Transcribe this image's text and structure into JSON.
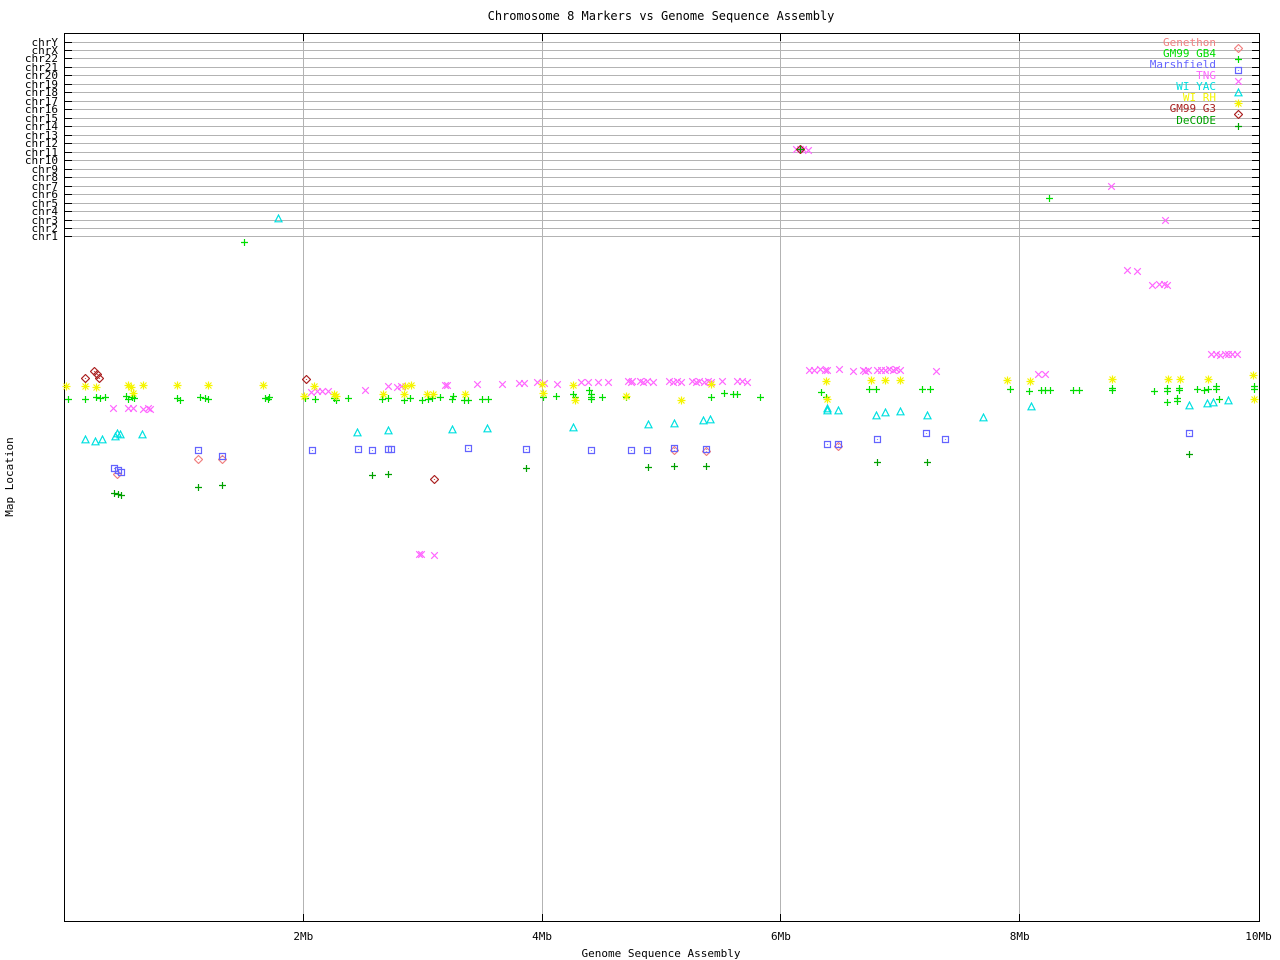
{
  "title": "Chromosome 8 Markers vs Genome Sequence Assembly",
  "x_axis": {
    "label": "Genome Sequence Assembly",
    "tick_labels": [
      "2Mb",
      "4Mb",
      "6Mb",
      "8Mb",
      "10Mb"
    ],
    "tick_values_mb": [
      2,
      4,
      6,
      8,
      10
    ],
    "range_mb": [
      0,
      10
    ],
    "grid": true
  },
  "y_axis": {
    "label": "Map Location",
    "chromosome_rows_top_to_bottom": [
      "chrY",
      "chrX",
      "chr22",
      "chr21",
      "chr20",
      "chr19",
      "chr18",
      "chr17",
      "chr16",
      "chr15",
      "chr14",
      "chr13",
      "chr12",
      "chr11",
      "chr10",
      "chr9",
      "chr8",
      "chr7",
      "chr6",
      "chr5",
      "chr4",
      "chr3",
      "chr2",
      "chr1"
    ]
  },
  "legend": {
    "position": "top-right-inside",
    "items": [
      "Genethon",
      "GM99 GB4",
      "Marshfield",
      "TNG",
      "WI YAC",
      "WI RH",
      "GM99 G3",
      "DeCODE"
    ]
  },
  "chart_data": {
    "type": "scatter",
    "title": "Chromosome 8 Markers vs Genome Sequence Assembly",
    "xlabel": "Genome Sequence Assembly",
    "ylabel": "Map Location",
    "x_unit": "Mb",
    "xlim": [
      0,
      10
    ],
    "y_unit": "screen-px-from-top (y axis has no printed numeric scale; chromosome lines occupy px 42-237)",
    "grid": true,
    "legend_position": "top-right",
    "series": [
      {
        "name": "Genethon",
        "color": "#f08080",
        "marker": "diamond-dot",
        "points": [
          [
            0.44,
            468
          ],
          [
            1.12,
            453
          ],
          [
            1.32,
            453
          ],
          [
            5.11,
            444
          ],
          [
            5.38,
            445
          ],
          [
            6.48,
            440
          ]
        ]
      },
      {
        "name": "GM99 GB4",
        "color": "#00dd00",
        "marker": "plus",
        "points": [
          [
            0.03,
            393
          ],
          [
            0.18,
            393
          ],
          [
            0.27,
            391
          ],
          [
            0.3,
            392
          ],
          [
            0.34,
            391
          ],
          [
            0.52,
            390
          ],
          [
            0.54,
            393
          ],
          [
            0.57,
            391
          ],
          [
            0.59,
            392
          ],
          [
            0.95,
            392
          ],
          [
            0.97,
            394
          ],
          [
            1.14,
            391
          ],
          [
            1.18,
            392
          ],
          [
            1.21,
            393
          ],
          [
            1.68,
            392
          ],
          [
            1.71,
            393
          ],
          [
            1.72,
            391
          ],
          [
            2.02,
            392
          ],
          [
            2.1,
            393
          ],
          [
            2.26,
            392
          ],
          [
            2.28,
            394
          ],
          [
            2.38,
            392
          ],
          [
            2.66,
            393
          ],
          [
            2.71,
            392
          ],
          [
            2.85,
            394
          ],
          [
            2.9,
            392
          ],
          [
            3.0,
            394
          ],
          [
            3.05,
            393
          ],
          [
            3.08,
            392
          ],
          [
            3.15,
            391
          ],
          [
            3.25,
            393
          ],
          [
            3.26,
            390
          ],
          [
            3.35,
            394
          ],
          [
            3.38,
            394
          ],
          [
            3.5,
            393
          ],
          [
            3.55,
            393
          ],
          [
            4.01,
            391
          ],
          [
            4.12,
            390
          ],
          [
            4.26,
            388
          ],
          [
            4.28,
            391
          ],
          [
            4.4,
            384
          ],
          [
            4.41,
            388
          ],
          [
            4.41,
            391
          ],
          [
            4.41,
            393
          ],
          [
            4.51,
            391
          ],
          [
            4.71,
            391
          ],
          [
            5.42,
            391
          ],
          [
            5.53,
            387
          ],
          [
            5.6,
            388
          ],
          [
            5.64,
            388
          ],
          [
            5.83,
            391
          ],
          [
            6.34,
            386
          ],
          [
            6.38,
            391
          ],
          [
            6.74,
            383
          ],
          [
            6.8,
            383
          ],
          [
            7.19,
            383
          ],
          [
            7.25,
            383
          ],
          [
            7.92,
            383
          ],
          [
            8.08,
            385
          ],
          [
            8.18,
            384
          ],
          [
            8.22,
            384
          ],
          [
            8.26,
            384
          ],
          [
            8.45,
            384
          ],
          [
            8.5,
            384
          ],
          [
            8.78,
            382
          ],
          [
            8.78,
            384
          ],
          [
            9.13,
            385
          ],
          [
            9.24,
            382
          ],
          [
            9.24,
            385
          ],
          [
            9.34,
            382
          ],
          [
            9.34,
            384
          ],
          [
            9.49,
            383
          ],
          [
            9.55,
            384
          ],
          [
            9.58,
            383
          ],
          [
            9.65,
            380
          ],
          [
            9.65,
            383
          ],
          [
            9.97,
            380
          ],
          [
            9.97,
            383
          ],
          [
            9.24,
            396
          ],
          [
            9.32,
            392
          ],
          [
            9.32,
            395
          ],
          [
            9.67,
            393
          ],
          [
            1.51,
            236
          ],
          [
            8.25,
            192
          ]
        ]
      },
      {
        "name": "Marshfield",
        "color": "#6464ff",
        "marker": "square-dot",
        "points": [
          [
            0.42,
            462
          ],
          [
            0.45,
            464
          ],
          [
            0.48,
            466
          ],
          [
            1.12,
            444
          ],
          [
            1.32,
            450
          ],
          [
            2.08,
            444
          ],
          [
            2.46,
            443
          ],
          [
            2.58,
            444
          ],
          [
            2.71,
            443
          ],
          [
            2.74,
            443
          ],
          [
            3.38,
            442
          ],
          [
            3.87,
            443
          ],
          [
            4.41,
            444
          ],
          [
            4.75,
            444
          ],
          [
            4.88,
            444
          ],
          [
            5.11,
            442
          ],
          [
            5.38,
            443
          ],
          [
            6.39,
            438
          ],
          [
            6.48,
            438
          ],
          [
            6.81,
            433
          ],
          [
            7.22,
            427
          ],
          [
            7.38,
            433
          ],
          [
            9.42,
            427
          ]
        ]
      },
      {
        "name": "TNG",
        "color": "#ff66ff",
        "marker": "x",
        "points": [
          [
            0.41,
            402
          ],
          [
            0.54,
            402
          ],
          [
            0.58,
            402
          ],
          [
            0.66,
            403
          ],
          [
            0.7,
            402
          ],
          [
            0.72,
            403
          ],
          [
            2.07,
            386
          ],
          [
            2.12,
            385
          ],
          [
            2.16,
            385
          ],
          [
            2.21,
            385
          ],
          [
            2.52,
            384
          ],
          [
            2.71,
            380
          ],
          [
            2.79,
            381
          ],
          [
            2.82,
            380
          ],
          [
            3.19,
            379
          ],
          [
            3.21,
            379
          ],
          [
            3.46,
            378
          ],
          [
            3.67,
            378
          ],
          [
            3.81,
            377
          ],
          [
            3.85,
            377
          ],
          [
            3.96,
            376
          ],
          [
            4.02,
            377
          ],
          [
            4.13,
            378
          ],
          [
            4.33,
            376
          ],
          [
            4.39,
            376
          ],
          [
            4.47,
            376
          ],
          [
            4.56,
            376
          ],
          [
            4.72,
            375
          ],
          [
            4.75,
            376
          ],
          [
            4.76,
            375
          ],
          [
            4.82,
            375
          ],
          [
            4.85,
            376
          ],
          [
            4.88,
            375
          ],
          [
            4.93,
            376
          ],
          [
            5.07,
            375
          ],
          [
            5.1,
            376
          ],
          [
            5.13,
            375
          ],
          [
            5.17,
            376
          ],
          [
            5.26,
            375
          ],
          [
            5.29,
            376
          ],
          [
            5.32,
            375
          ],
          [
            5.36,
            376
          ],
          [
            5.39,
            375
          ],
          [
            5.42,
            376
          ],
          [
            5.51,
            375
          ],
          [
            5.64,
            375
          ],
          [
            5.68,
            375
          ],
          [
            5.72,
            376
          ],
          [
            6.24,
            364
          ],
          [
            6.28,
            364
          ],
          [
            6.33,
            363
          ],
          [
            6.37,
            364
          ],
          [
            6.39,
            364
          ],
          [
            6.49,
            363
          ],
          [
            6.61,
            365
          ],
          [
            6.69,
            364
          ],
          [
            6.71,
            365
          ],
          [
            6.73,
            364
          ],
          [
            6.81,
            364
          ],
          [
            6.84,
            364
          ],
          [
            6.88,
            364
          ],
          [
            6.91,
            363
          ],
          [
            6.94,
            364
          ],
          [
            6.97,
            363
          ],
          [
            7.0,
            364
          ],
          [
            7.3,
            365
          ],
          [
            8.16,
            368
          ],
          [
            8.22,
            368
          ],
          [
            9.61,
            348
          ],
          [
            9.65,
            348
          ],
          [
            9.68,
            349
          ],
          [
            9.72,
            348
          ],
          [
            9.75,
            348
          ],
          [
            9.78,
            348
          ],
          [
            9.82,
            348
          ],
          [
            8.9,
            264
          ],
          [
            8.99,
            265
          ],
          [
            9.11,
            279
          ],
          [
            9.17,
            278
          ],
          [
            9.21,
            278
          ],
          [
            9.24,
            279
          ],
          [
            2.97,
            548
          ],
          [
            2.99,
            548
          ],
          [
            3.1,
            549
          ],
          [
            8.77,
            180
          ],
          [
            9.22,
            214
          ],
          [
            6.13,
            143
          ],
          [
            6.16,
            143
          ],
          [
            6.19,
            143
          ],
          [
            6.23,
            144
          ]
        ]
      },
      {
        "name": "WI YAC",
        "color": "#00e0e0",
        "marker": "triangle",
        "points": [
          [
            0.18,
            433
          ],
          [
            0.26,
            435
          ],
          [
            0.32,
            433
          ],
          [
            0.43,
            430
          ],
          [
            0.44,
            427
          ],
          [
            0.47,
            428
          ],
          [
            0.65,
            428
          ],
          [
            1.79,
            212
          ],
          [
            2.45,
            426
          ],
          [
            2.71,
            424
          ],
          [
            3.25,
            423
          ],
          [
            3.54,
            422
          ],
          [
            4.26,
            421
          ],
          [
            4.89,
            418
          ],
          [
            5.11,
            417
          ],
          [
            5.35,
            414
          ],
          [
            5.41,
            413
          ],
          [
            6.39,
            402
          ],
          [
            6.39,
            404
          ],
          [
            6.48,
            404
          ],
          [
            6.8,
            409
          ],
          [
            6.88,
            406
          ],
          [
            7.0,
            405
          ],
          [
            7.23,
            409
          ],
          [
            7.7,
            411
          ],
          [
            8.1,
            400
          ],
          [
            9.42,
            399
          ],
          [
            9.57,
            397
          ],
          [
            9.62,
            396
          ],
          [
            9.75,
            394
          ]
        ]
      },
      {
        "name": "WI RH",
        "color": "#f5f500",
        "marker": "asterisk",
        "points": [
          [
            0.02,
            380
          ],
          [
            0.18,
            380
          ],
          [
            0.27,
            381
          ],
          [
            0.54,
            379
          ],
          [
            0.56,
            381
          ],
          [
            0.58,
            387
          ],
          [
            0.66,
            379
          ],
          [
            0.95,
            379
          ],
          [
            1.21,
            379
          ],
          [
            1.67,
            379
          ],
          [
            2.01,
            390
          ],
          [
            2.09,
            380
          ],
          [
            2.26,
            388
          ],
          [
            2.28,
            390
          ],
          [
            2.67,
            388
          ],
          [
            2.85,
            388
          ],
          [
            2.86,
            380
          ],
          [
            2.91,
            379
          ],
          [
            3.04,
            388
          ],
          [
            3.09,
            388
          ],
          [
            3.36,
            388
          ],
          [
            4.0,
            378
          ],
          [
            4.01,
            387
          ],
          [
            4.26,
            379
          ],
          [
            4.28,
            394
          ],
          [
            4.71,
            390
          ],
          [
            5.17,
            394
          ],
          [
            5.42,
            378
          ],
          [
            6.38,
            375
          ],
          [
            6.39,
            393
          ],
          [
            6.76,
            374
          ],
          [
            6.88,
            374
          ],
          [
            7.0,
            374
          ],
          [
            7.9,
            374
          ],
          [
            8.09,
            375
          ],
          [
            8.78,
            373
          ],
          [
            9.25,
            373
          ],
          [
            9.35,
            373
          ],
          [
            9.58,
            373
          ],
          [
            9.96,
            369
          ],
          [
            9.97,
            393
          ]
        ]
      },
      {
        "name": "GM99 G3",
        "color": "#aa2020",
        "marker": "diamond-dot",
        "points": [
          [
            0.18,
            372
          ],
          [
            0.25,
            365
          ],
          [
            0.28,
            368
          ],
          [
            0.29,
            372
          ],
          [
            2.03,
            373
          ],
          [
            3.1,
            473
          ],
          [
            6.16,
            143
          ]
        ]
      },
      {
        "name": "DeCODE",
        "color": "#00a000",
        "marker": "plus",
        "points": [
          [
            0.42,
            487
          ],
          [
            0.45,
            488
          ],
          [
            0.48,
            489
          ],
          [
            1.12,
            481
          ],
          [
            1.32,
            479
          ],
          [
            2.58,
            469
          ],
          [
            2.71,
            468
          ],
          [
            3.87,
            462
          ],
          [
            4.89,
            461
          ],
          [
            5.11,
            460
          ],
          [
            5.38,
            460
          ],
          [
            6.81,
            456
          ],
          [
            7.23,
            456
          ],
          [
            9.42,
            448
          ],
          [
            6.16,
            143
          ]
        ]
      }
    ]
  }
}
